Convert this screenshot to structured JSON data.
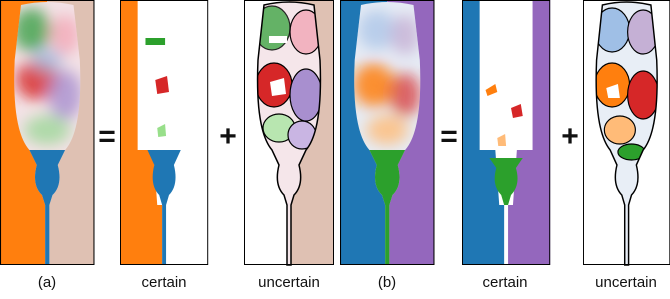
{
  "labels": [
    "(a)",
    "certain",
    "uncertain",
    "(b)",
    "certain",
    "uncertain"
  ],
  "operators": [
    "=",
    "+",
    "=",
    "+"
  ]
}
